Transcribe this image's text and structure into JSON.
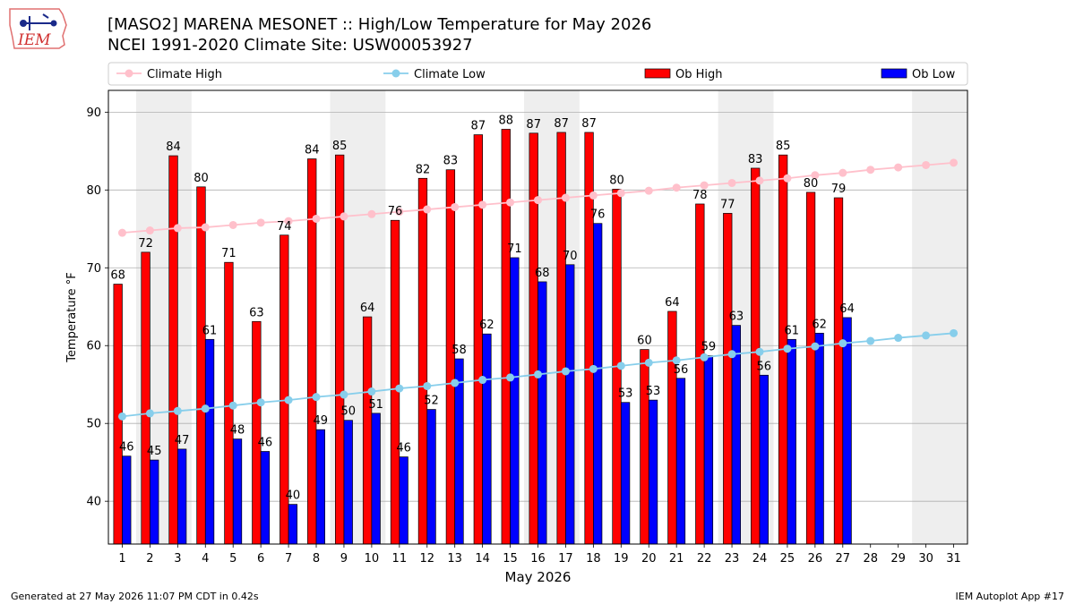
{
  "header": {
    "title_line1": "[MASO2] MARENA MESONET :: High/Low Temperature for May 2026",
    "title_line2": "NCEI 1991-2020 Climate Site: USW00053927",
    "logo_text": "IEM"
  },
  "footer": {
    "left": "Generated at 27 May 2026 11:07 PM CDT in 0.42s",
    "right": "IEM Autoplot App #17"
  },
  "colors": {
    "ob_high": "#ff0000",
    "ob_low": "#0000ff",
    "climate_high": "#ffc0cb",
    "climate_low": "#87ceeb",
    "weekend_band": "#eeeeee"
  },
  "chart_data": {
    "type": "bar",
    "xlabel": "May 2026",
    "ylabel": "Temperature °F",
    "ylim": [
      34.5,
      92.8
    ],
    "yticks": [
      40,
      50,
      60,
      70,
      80,
      90
    ],
    "grid": true,
    "legend_position": "top, above plot",
    "categories": [
      "1",
      "2",
      "3",
      "4",
      "5",
      "6",
      "7",
      "8",
      "9",
      "10",
      "11",
      "12",
      "13",
      "14",
      "15",
      "16",
      "17",
      "18",
      "19",
      "20",
      "21",
      "22",
      "23",
      "24",
      "25",
      "26",
      "27",
      "28",
      "29",
      "30",
      "31"
    ],
    "shaded_days": [
      2,
      9,
      16,
      23,
      30
    ],
    "legend": [
      "Climate High",
      "Climate Low",
      "Ob High",
      "Ob Low"
    ],
    "series": [
      {
        "name": "Ob High",
        "kind": "bar",
        "values": [
          67.9,
          72.0,
          84.4,
          80.4,
          70.7,
          63.1,
          74.2,
          84.0,
          84.5,
          63.7,
          76.1,
          81.5,
          82.6,
          87.1,
          87.8,
          87.3,
          87.4,
          87.4,
          80.1,
          59.5,
          64.4,
          78.2,
          77.0,
          82.8,
          84.5,
          79.7,
          79.0,
          null,
          null,
          null,
          null
        ],
        "labels": [
          "68",
          "72",
          "84",
          "80",
          "71",
          "63",
          "74",
          "84",
          "85",
          "64",
          "76",
          "82",
          "83",
          "87",
          "88",
          "87",
          "87",
          "87",
          "80",
          "60",
          "64",
          "78",
          "77",
          "83",
          "85",
          "80",
          "79",
          "",
          "",
          "",
          ""
        ]
      },
      {
        "name": "Ob Low",
        "kind": "bar",
        "values": [
          45.8,
          45.3,
          46.7,
          60.8,
          48.0,
          46.4,
          39.6,
          49.2,
          50.4,
          51.3,
          45.7,
          51.8,
          58.3,
          61.5,
          71.3,
          68.2,
          70.4,
          75.7,
          52.7,
          53.0,
          55.8,
          58.7,
          62.6,
          56.2,
          60.8,
          61.6,
          63.6,
          null,
          null,
          null,
          null
        ],
        "labels": [
          "46",
          "45",
          "47",
          "61",
          "48",
          "46",
          "40",
          "49",
          "50",
          "51",
          "46",
          "52",
          "58",
          "62",
          "71",
          "68",
          "70",
          "76",
          "53",
          "53",
          "56",
          "59",
          "63",
          "56",
          "61",
          "62",
          "64",
          "",
          "",
          "",
          ""
        ]
      },
      {
        "name": "Climate High",
        "kind": "line",
        "values": [
          74.5,
          74.8,
          75.1,
          75.2,
          75.5,
          75.8,
          76.0,
          76.3,
          76.6,
          76.9,
          77.2,
          77.5,
          77.8,
          78.1,
          78.4,
          78.7,
          79.0,
          79.3,
          79.6,
          79.9,
          80.3,
          80.6,
          80.9,
          81.2,
          81.5,
          81.9,
          82.2,
          82.6,
          82.9,
          83.2,
          83.5
        ]
      },
      {
        "name": "Climate Low",
        "kind": "line",
        "values": [
          50.9,
          51.3,
          51.6,
          51.9,
          52.3,
          52.7,
          53.0,
          53.4,
          53.7,
          54.1,
          54.5,
          54.8,
          55.2,
          55.6,
          55.9,
          56.3,
          56.7,
          57.0,
          57.4,
          57.8,
          58.1,
          58.5,
          58.9,
          59.2,
          59.6,
          59.9,
          60.3,
          60.6,
          61.0,
          61.3,
          61.6
        ]
      }
    ]
  }
}
